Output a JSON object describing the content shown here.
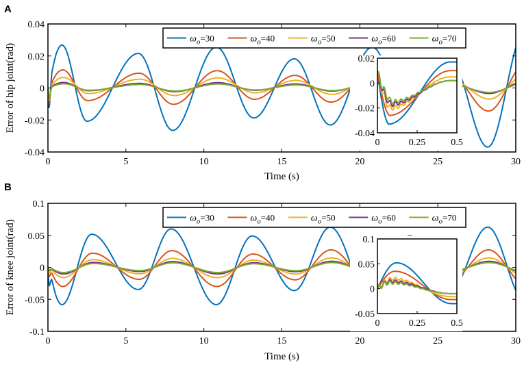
{
  "chart_data": [
    {
      "panel": "A",
      "type": "line",
      "ylabel": "Error of hip joint(rad)",
      "xlabel": "Time (s)",
      "xlim": [
        0,
        30
      ],
      "ylim": [
        -0.04,
        0.04
      ],
      "xticks": [
        "0",
        "5",
        "10",
        "15",
        "20",
        "25",
        "30"
      ],
      "yticks": [
        "-0.04",
        "-0.02",
        "0",
        "0.02",
        "0.04"
      ],
      "legend": {
        "symbol": "ω",
        "subscript": "o",
        "entries": [
          "=30",
          "=40",
          "=50",
          "=60",
          "=70"
        ],
        "placement": "top-center"
      },
      "series": [
        {
          "name": "ωo=30",
          "color": "#0072BD",
          "amplitude": 0.026,
          "bias": -0.0005,
          "phase": 0.0,
          "initial_dip": -0.032
        },
        {
          "name": "ωo=40",
          "color": "#D95319",
          "amplitude": 0.0105,
          "bias": 0.0003,
          "phase": 0.05,
          "initial_dip": -0.022
        },
        {
          "name": "ωo=50",
          "color": "#EDB120",
          "amplitude": 0.0055,
          "bias": 0.0008,
          "phase": 0.1,
          "initial_dip": -0.018
        },
        {
          "name": "ωo=60",
          "color": "#7E2F8E",
          "amplitude": 0.0028,
          "bias": 0.0005,
          "phase": 0.1,
          "initial_dip": -0.015
        },
        {
          "name": "ωo=70",
          "color": "#77AC30",
          "amplitude": 0.0022,
          "bias": 0.0003,
          "phase": 0.12,
          "initial_dip": -0.014
        }
      ],
      "waveform": {
        "peaks_at": [
          0.9,
          5.8,
          10.8,
          15.8,
          20.8,
          25.8
        ],
        "troughs_at": [
          2.5,
          8.0,
          13.2,
          18.1,
          23.1,
          28.2
        ],
        "peak_scale": [
          1.05,
          0.85,
          1.0,
          0.72,
          1.0,
          0.7
        ],
        "trough_scale": [
          0.78,
          1.0,
          0.7,
          0.87,
          0.7,
          1.4
        ]
      },
      "inset": {
        "xlim": [
          0,
          0.5
        ],
        "ylim": [
          -0.04,
          0.02
        ],
        "xticks": [
          "0",
          "0.25",
          "0.5"
        ],
        "yticks": [
          "-0.04",
          "-0.02",
          "0",
          "0.02"
        ],
        "series_min": [
          -0.033,
          -0.026,
          -0.02,
          -0.017,
          -0.015
        ],
        "series_end": [
          0.017,
          0.01,
          0.005,
          0.002,
          0.002
        ]
      }
    },
    {
      "panel": "B",
      "type": "line",
      "ylabel": "Error of knee joint(rad)",
      "xlabel": "Time (s)",
      "xlim": [
        0,
        30
      ],
      "ylim": [
        -0.1,
        0.1
      ],
      "xticks": [
        "0",
        "5",
        "10",
        "15",
        "20",
        "25",
        "30"
      ],
      "yticks": [
        "-0.1",
        "-0.05",
        "0",
        "0.05",
        "0.1"
      ],
      "legend": {
        "symbol": "ω",
        "subscript": "o",
        "entries": [
          "=30",
          "=40",
          "=50",
          "=60",
          "=70"
        ],
        "placement": "top-center"
      },
      "series": [
        {
          "name": "ωo=30",
          "color": "#0072BD",
          "amplitude": 0.055,
          "bias": 0.005,
          "phase": 0.0,
          "initial_dip": -0.06
        },
        {
          "name": "ωo=40",
          "color": "#D95319",
          "amplitude": 0.026,
          "bias": 0.0,
          "phase": 0.05,
          "initial_dip": -0.03
        },
        {
          "name": "ωo=50",
          "color": "#EDB120",
          "amplitude": 0.014,
          "bias": 0.0,
          "phase": 0.08,
          "initial_dip": -0.02
        },
        {
          "name": "ωo=60",
          "color": "#7E2F8E",
          "amplitude": 0.009,
          "bias": 0.0,
          "phase": 0.1,
          "initial_dip": -0.012
        },
        {
          "name": "ωo=70",
          "color": "#77AC30",
          "amplitude": 0.007,
          "bias": 0.0,
          "phase": 0.1,
          "initial_dip": -0.01
        }
      ],
      "waveform": {
        "peaks_at": [
          2.8,
          7.9,
          13.1,
          18.1,
          23.2,
          28.2
        ],
        "troughs_at": [
          0.9,
          5.8,
          10.8,
          15.8,
          20.8,
          25.8
        ],
        "peak_scale": [
          0.85,
          1.0,
          0.8,
          1.05,
          0.8,
          1.05
        ],
        "trough_scale": [
          1.15,
          0.72,
          1.15,
          0.75,
          1.15,
          0.75
        ]
      },
      "inset": {
        "xlim": [
          0,
          0.5
        ],
        "ylim": [
          -0.05,
          0.1
        ],
        "xticks": [
          "0",
          "0.25",
          "0.5"
        ],
        "yticks": [
          "-0.05",
          "0",
          "0.05",
          "0.1"
        ],
        "series_peak": [
          0.052,
          0.035,
          0.02,
          0.015,
          0.012
        ],
        "series_end": [
          -0.03,
          -0.022,
          -0.016,
          -0.01,
          -0.01
        ]
      }
    }
  ]
}
